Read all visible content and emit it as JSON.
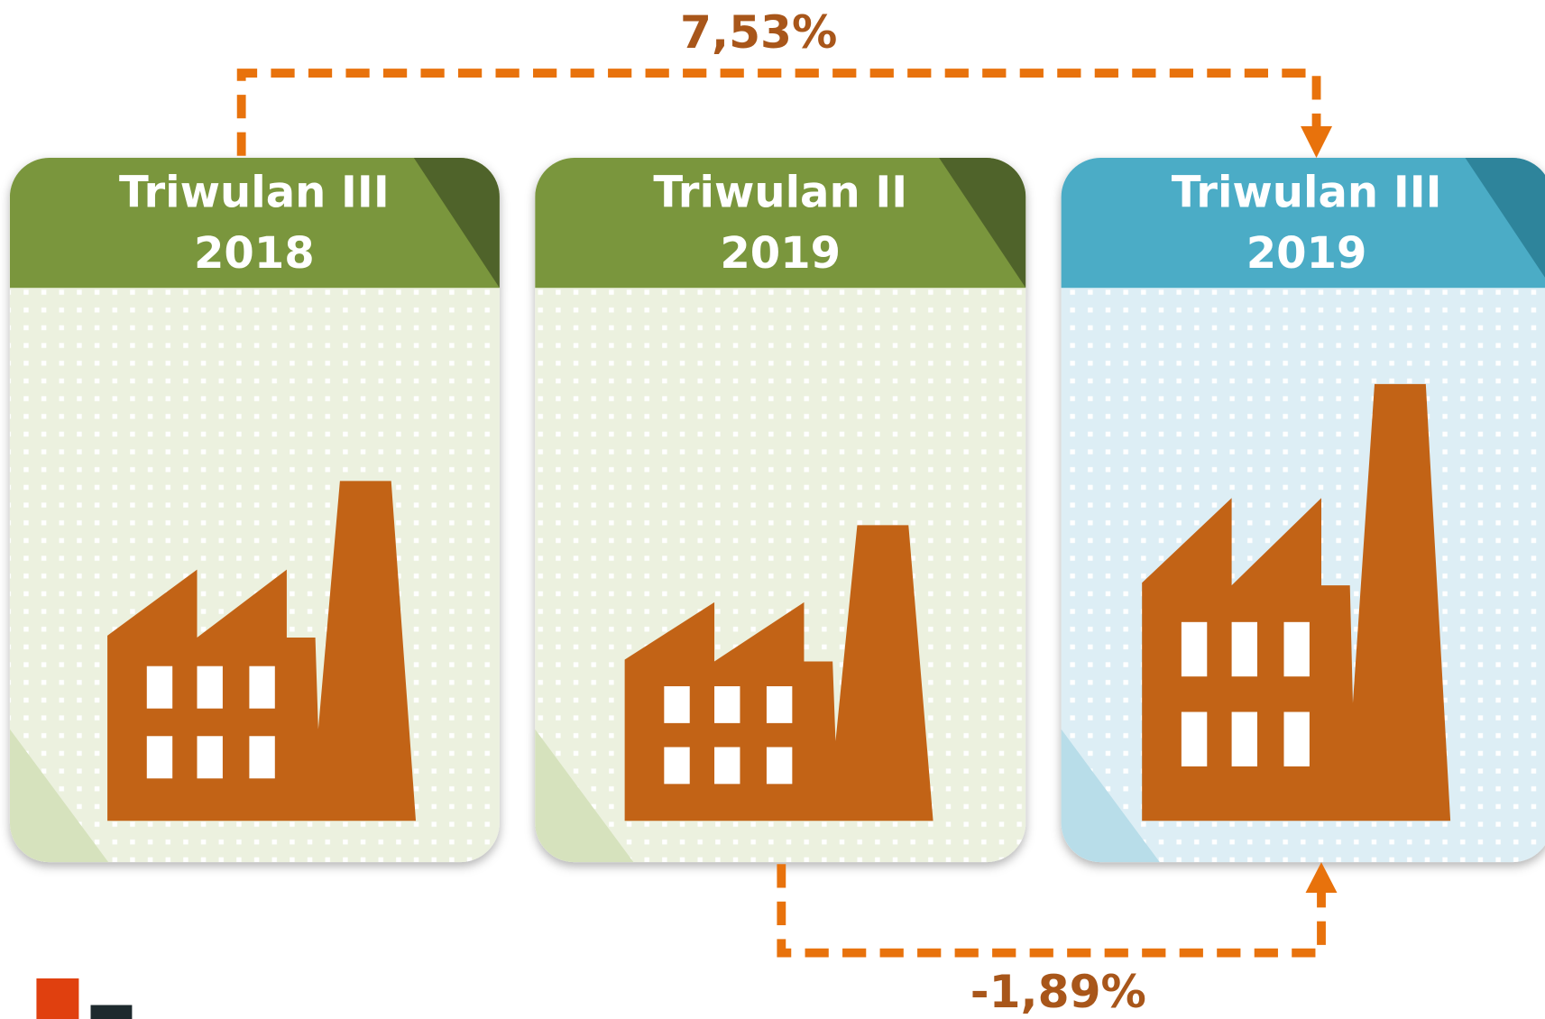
{
  "cards": [
    {
      "title": "Triwulan III",
      "year": "2018"
    },
    {
      "title": "Triwulan II",
      "year": "2019"
    },
    {
      "title": "Triwulan III",
      "year": "2019"
    }
  ],
  "arrows": [
    {
      "label": "7,53%"
    },
    {
      "label": "-1,89%"
    }
  ]
}
